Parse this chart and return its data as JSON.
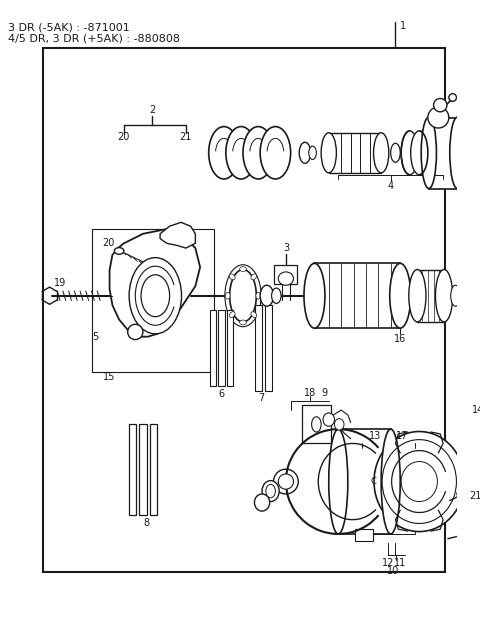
{
  "title_line1": "3 DR (-5AK) : -871001",
  "title_line2": "4/5 DR, 3 DR (+5AK) : -880808",
  "bg_color": "#ffffff",
  "text_color": "#1a1a1a",
  "line_color": "#1a1a1a"
}
